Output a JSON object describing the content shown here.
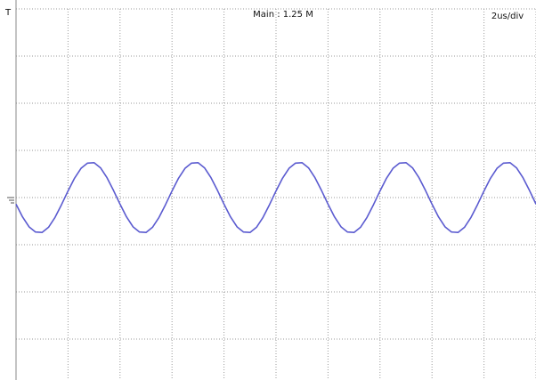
{
  "chart_data": {
    "type": "line",
    "annotations": [
      "Main : 1.25 M",
      "2us/div"
    ],
    "x": [
      0,
      0.25,
      0.5,
      0.75,
      1,
      1.25,
      1.5,
      1.75,
      2,
      2.25,
      2.5,
      2.75,
      3,
      3.25,
      3.5,
      3.75,
      4,
      4.25,
      4.5,
      4.75,
      5,
      5.25,
      5.5,
      5.75,
      6,
      6.25,
      6.5,
      6.75,
      7,
      7.25,
      7.5,
      7.75,
      8,
      8.25,
      8.5,
      8.75,
      9,
      9.25,
      9.5,
      9.75,
      10,
      10.25,
      10.5,
      10.75,
      11,
      11.25,
      11.5,
      11.75,
      12,
      12.25,
      12.5,
      12.75,
      13,
      13.25,
      13.5,
      13.75,
      14,
      14.25,
      14.5,
      14.75,
      15,
      15.25,
      15.5,
      15.75,
      16,
      16.25,
      16.5,
      16.75,
      17,
      17.25,
      17.5,
      17.75,
      18,
      18.25,
      18.5,
      18.75,
      19,
      19.25,
      19.5,
      19.75,
      20
    ],
    "series": [
      {
        "color": "#5b5bd0",
        "values": [
          -0.14,
          -0.41,
          -0.62,
          -0.73,
          -0.74,
          -0.63,
          -0.42,
          -0.15,
          0.14,
          0.41,
          0.62,
          0.73,
          0.74,
          0.63,
          0.42,
          0.15,
          -0.14,
          -0.41,
          -0.62,
          -0.73,
          -0.74,
          -0.63,
          -0.42,
          -0.15,
          0.14,
          0.41,
          0.62,
          0.73,
          0.74,
          0.63,
          0.42,
          0.15,
          -0.14,
          -0.41,
          -0.62,
          -0.73,
          -0.74,
          -0.63,
          -0.42,
          -0.15,
          0.14,
          0.41,
          0.62,
          0.73,
          0.74,
          0.63,
          0.42,
          0.15,
          -0.14,
          -0.41,
          -0.62,
          -0.73,
          -0.74,
          -0.63,
          -0.42,
          -0.15,
          0.14,
          0.41,
          0.62,
          0.73,
          0.74,
          0.63,
          0.42,
          0.15,
          -0.14,
          -0.41,
          -0.62,
          -0.73,
          -0.74,
          -0.63,
          -0.42,
          -0.15,
          0.14,
          0.41,
          0.62,
          0.73,
          0.74,
          0.63,
          0.42,
          0.15,
          -0.14
        ]
      }
    ],
    "xlim": [
      0,
      20
    ],
    "xticks": [
      0,
      2,
      4,
      6,
      8,
      10,
      12,
      14,
      16,
      18,
      20
    ],
    "ylim": [
      -4,
      4
    ],
    "yticks": [
      -4,
      -3,
      -2,
      -1,
      0,
      1,
      2,
      3,
      4
    ],
    "grid": true
  }
}
